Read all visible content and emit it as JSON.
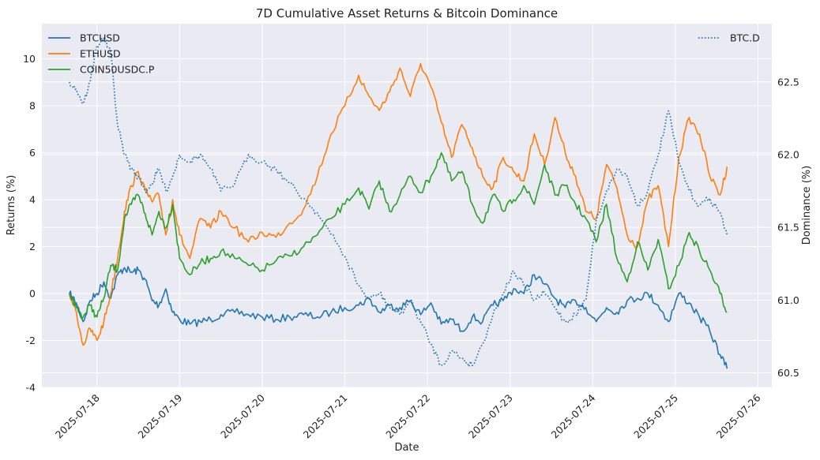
{
  "chart_data": {
    "type": "line",
    "title": "7D Cumulative Asset Returns & Bitcoin Dominance",
    "xlabel": "Date",
    "ylabel": "Returns (%)",
    "y2label": "Dominance (%)",
    "xlim": [
      "2025-07-17T08:00",
      "2025-07-26T04:00"
    ],
    "ylim": [
      -4,
      11.5
    ],
    "y2lim": [
      60.4,
      62.9
    ],
    "x_ticks": [
      "2025-07-18",
      "2025-07-19",
      "2025-07-20",
      "2025-07-21",
      "2025-07-22",
      "2025-07-23",
      "2025-07-24",
      "2025-07-25",
      "2025-07-26"
    ],
    "y_ticks": [
      -4,
      -2,
      0,
      2,
      4,
      6,
      8,
      10
    ],
    "y2_ticks": [
      60.5,
      61.0,
      61.5,
      62.0,
      62.5
    ],
    "grid": true,
    "legend_left": "upper-left",
    "legend_right": "upper-right",
    "series": [
      {
        "name": "BTCUSD",
        "axis": "left",
        "color": "#1f77b4",
        "style": "solid",
        "x": [
          "2025-07-17T16:00",
          "2025-07-17T18:00",
          "2025-07-17T20:00",
          "2025-07-17T22:00",
          "2025-07-18T00:00",
          "2025-07-18T02:00",
          "2025-07-18T04:00",
          "2025-07-18T06:00",
          "2025-07-18T08:00",
          "2025-07-18T10:00",
          "2025-07-18T12:00",
          "2025-07-18T14:00",
          "2025-07-18T16:00",
          "2025-07-18T18:00",
          "2025-07-18T20:00",
          "2025-07-18T22:00",
          "2025-07-19T00:00",
          "2025-07-19T03:00",
          "2025-07-19T06:00",
          "2025-07-19T09:00",
          "2025-07-19T12:00",
          "2025-07-19T16:00",
          "2025-07-19T20:00",
          "2025-07-20T00:00",
          "2025-07-20T04:00",
          "2025-07-20T08:00",
          "2025-07-20T12:00",
          "2025-07-20T16:00",
          "2025-07-20T20:00",
          "2025-07-21T00:00",
          "2025-07-21T04:00",
          "2025-07-21T07:00",
          "2025-07-21T10:00",
          "2025-07-21T13:00",
          "2025-07-21T16:00",
          "2025-07-21T19:00",
          "2025-07-21T22:00",
          "2025-07-22T01:00",
          "2025-07-22T04:00",
          "2025-07-22T07:00",
          "2025-07-22T10:00",
          "2025-07-22T13:00",
          "2025-07-22T16:00",
          "2025-07-22T19:00",
          "2025-07-22T22:00",
          "2025-07-23T01:00",
          "2025-07-23T04:00",
          "2025-07-23T07:00",
          "2025-07-23T10:00",
          "2025-07-23T13:00",
          "2025-07-23T16:00",
          "2025-07-23T19:00",
          "2025-07-23T22:00",
          "2025-07-24T01:00",
          "2025-07-24T04:00",
          "2025-07-24T07:00",
          "2025-07-24T10:00",
          "2025-07-24T13:00",
          "2025-07-24T16:00",
          "2025-07-24T19:00",
          "2025-07-24T22:00",
          "2025-07-25T01:00",
          "2025-07-25T04:00",
          "2025-07-25T07:00",
          "2025-07-25T10:00",
          "2025-07-25T13:00",
          "2025-07-25T15:00"
        ],
        "values": [
          0.0,
          -0.4,
          -1.2,
          -0.3,
          0.0,
          0.5,
          -0.2,
          0.8,
          1.1,
          0.9,
          1.0,
          0.6,
          -0.3,
          -0.5,
          0.2,
          -0.8,
          -1.1,
          -1.3,
          -1.2,
          -1.1,
          -0.9,
          -0.8,
          -0.9,
          -1.0,
          -1.1,
          -1.0,
          -0.9,
          -1.0,
          -0.8,
          -0.6,
          -0.5,
          -0.2,
          -0.8,
          -0.5,
          -0.6,
          -0.3,
          -0.9,
          -0.4,
          -1.3,
          -1.1,
          -1.6,
          -1.0,
          -1.2,
          -0.5,
          -0.3,
          0.2,
          0.0,
          0.8,
          0.4,
          -0.2,
          -0.6,
          -0.3,
          -0.6,
          -1.2,
          -0.6,
          -0.8,
          -0.3,
          -0.2,
          0.0,
          -0.5,
          -1.2,
          0.0,
          -0.4,
          -1.0,
          -1.6,
          -2.6,
          -3.2
        ]
      },
      {
        "name": "ETHUSD",
        "axis": "left",
        "color": "#ff7f0e",
        "style": "solid",
        "x": [
          "2025-07-17T16:00",
          "2025-07-17T18:00",
          "2025-07-17T20:00",
          "2025-07-17T22:00",
          "2025-07-18T00:00",
          "2025-07-18T02:00",
          "2025-07-18T04:00",
          "2025-07-18T06:00",
          "2025-07-18T08:00",
          "2025-07-18T10:00",
          "2025-07-18T12:00",
          "2025-07-18T14:00",
          "2025-07-18T16:00",
          "2025-07-18T18:00",
          "2025-07-18T20:00",
          "2025-07-18T22:00",
          "2025-07-19T00:00",
          "2025-07-19T03:00",
          "2025-07-19T06:00",
          "2025-07-19T09:00",
          "2025-07-19T12:00",
          "2025-07-19T16:00",
          "2025-07-19T20:00",
          "2025-07-20T00:00",
          "2025-07-20T04:00",
          "2025-07-20T08:00",
          "2025-07-20T12:00",
          "2025-07-20T16:00",
          "2025-07-20T20:00",
          "2025-07-21T00:00",
          "2025-07-21T04:00",
          "2025-07-21T07:00",
          "2025-07-21T10:00",
          "2025-07-21T13:00",
          "2025-07-21T16:00",
          "2025-07-21T19:00",
          "2025-07-21T22:00",
          "2025-07-22T01:00",
          "2025-07-22T04:00",
          "2025-07-22T07:00",
          "2025-07-22T10:00",
          "2025-07-22T13:00",
          "2025-07-22T16:00",
          "2025-07-22T19:00",
          "2025-07-22T22:00",
          "2025-07-23T01:00",
          "2025-07-23T04:00",
          "2025-07-23T07:00",
          "2025-07-23T10:00",
          "2025-07-23T13:00",
          "2025-07-23T16:00",
          "2025-07-23T19:00",
          "2025-07-23T22:00",
          "2025-07-24T01:00",
          "2025-07-24T04:00",
          "2025-07-24T07:00",
          "2025-07-24T10:00",
          "2025-07-24T13:00",
          "2025-07-24T16:00",
          "2025-07-24T19:00",
          "2025-07-24T22:00",
          "2025-07-25T01:00",
          "2025-07-25T04:00",
          "2025-07-25T07:00",
          "2025-07-25T10:00",
          "2025-07-25T13:00",
          "2025-07-25T15:00"
        ],
        "values": [
          0.0,
          -0.8,
          -2.2,
          -1.5,
          -2.0,
          -1.2,
          0.0,
          1.5,
          3.5,
          4.6,
          5.2,
          4.4,
          3.9,
          4.2,
          2.5,
          4.0,
          2.5,
          1.5,
          3.2,
          2.8,
          3.5,
          2.8,
          2.2,
          2.6,
          2.4,
          3.0,
          3.6,
          5.0,
          6.8,
          8.0,
          9.3,
          8.4,
          7.8,
          8.6,
          9.6,
          8.4,
          9.8,
          8.8,
          7.3,
          5.8,
          7.2,
          6.2,
          5.0,
          4.5,
          5.8,
          5.2,
          4.8,
          6.8,
          5.5,
          7.5,
          6.0,
          5.0,
          3.5,
          3.2,
          5.5,
          4.5,
          2.5,
          2.0,
          4.0,
          4.6,
          2.0,
          5.8,
          7.5,
          6.8,
          5.0,
          4.2,
          5.4
        ]
      },
      {
        "name": "COIN50USDC.P",
        "axis": "left",
        "color": "#2ca02c",
        "style": "solid",
        "x": [
          "2025-07-17T16:00",
          "2025-07-17T18:00",
          "2025-07-17T20:00",
          "2025-07-17T22:00",
          "2025-07-18T00:00",
          "2025-07-18T02:00",
          "2025-07-18T04:00",
          "2025-07-18T06:00",
          "2025-07-18T08:00",
          "2025-07-18T10:00",
          "2025-07-18T12:00",
          "2025-07-18T14:00",
          "2025-07-18T16:00",
          "2025-07-18T18:00",
          "2025-07-18T20:00",
          "2025-07-18T22:00",
          "2025-07-19T00:00",
          "2025-07-19T03:00",
          "2025-07-19T06:00",
          "2025-07-19T09:00",
          "2025-07-19T12:00",
          "2025-07-19T16:00",
          "2025-07-19T20:00",
          "2025-07-20T00:00",
          "2025-07-20T04:00",
          "2025-07-20T08:00",
          "2025-07-20T12:00",
          "2025-07-20T16:00",
          "2025-07-20T20:00",
          "2025-07-21T00:00",
          "2025-07-21T04:00",
          "2025-07-21T07:00",
          "2025-07-21T10:00",
          "2025-07-21T13:00",
          "2025-07-21T16:00",
          "2025-07-21T19:00",
          "2025-07-21T22:00",
          "2025-07-22T01:00",
          "2025-07-22T04:00",
          "2025-07-22T07:00",
          "2025-07-22T10:00",
          "2025-07-22T13:00",
          "2025-07-22T16:00",
          "2025-07-22T19:00",
          "2025-07-22T22:00",
          "2025-07-23T01:00",
          "2025-07-23T04:00",
          "2025-07-23T07:00",
          "2025-07-23T10:00",
          "2025-07-23T13:00",
          "2025-07-23T16:00",
          "2025-07-23T19:00",
          "2025-07-23T22:00",
          "2025-07-24T01:00",
          "2025-07-24T04:00",
          "2025-07-24T07:00",
          "2025-07-24T10:00",
          "2025-07-24T13:00",
          "2025-07-24T16:00",
          "2025-07-24T19:00",
          "2025-07-24T22:00",
          "2025-07-25T01:00",
          "2025-07-25T04:00",
          "2025-07-25T07:00",
          "2025-07-25T10:00",
          "2025-07-25T13:00",
          "2025-07-25T15:00"
        ],
        "values": [
          0.0,
          -0.6,
          -1.0,
          -0.5,
          -1.0,
          -0.2,
          1.2,
          1.0,
          3.2,
          3.8,
          4.2,
          3.4,
          2.5,
          3.5,
          2.8,
          3.8,
          1.5,
          0.8,
          1.3,
          1.5,
          1.8,
          1.5,
          1.2,
          1.0,
          1.4,
          1.6,
          2.0,
          2.5,
          3.2,
          3.8,
          4.5,
          3.6,
          4.8,
          3.5,
          4.2,
          5.0,
          4.3,
          5.0,
          6.0,
          4.8,
          5.2,
          3.8,
          3.0,
          4.2,
          3.5,
          4.0,
          4.6,
          3.8,
          5.5,
          4.2,
          4.6,
          3.8,
          3.2,
          2.2,
          3.8,
          1.5,
          0.5,
          2.2,
          1.0,
          2.3,
          0.2,
          1.2,
          2.6,
          1.8,
          1.0,
          0.0,
          -0.8
        ]
      },
      {
        "name": "BTC.D",
        "axis": "right",
        "color": "#1f77b4",
        "style": "dotted",
        "x": [
          "2025-07-17T16:00",
          "2025-07-17T18:00",
          "2025-07-17T20:00",
          "2025-07-17T22:00",
          "2025-07-18T00:00",
          "2025-07-18T02:00",
          "2025-07-18T04:00",
          "2025-07-18T06:00",
          "2025-07-18T08:00",
          "2025-07-18T10:00",
          "2025-07-18T12:00",
          "2025-07-18T14:00",
          "2025-07-18T16:00",
          "2025-07-18T18:00",
          "2025-07-18T20:00",
          "2025-07-18T22:00",
          "2025-07-19T00:00",
          "2025-07-19T03:00",
          "2025-07-19T06:00",
          "2025-07-19T09:00",
          "2025-07-19T12:00",
          "2025-07-19T16:00",
          "2025-07-19T20:00",
          "2025-07-20T00:00",
          "2025-07-20T04:00",
          "2025-07-20T08:00",
          "2025-07-20T12:00",
          "2025-07-20T16:00",
          "2025-07-20T20:00",
          "2025-07-21T00:00",
          "2025-07-21T04:00",
          "2025-07-21T07:00",
          "2025-07-21T10:00",
          "2025-07-21T13:00",
          "2025-07-21T16:00",
          "2025-07-21T19:00",
          "2025-07-21T22:00",
          "2025-07-22T01:00",
          "2025-07-22T04:00",
          "2025-07-22T07:00",
          "2025-07-22T10:00",
          "2025-07-22T13:00",
          "2025-07-22T16:00",
          "2025-07-22T19:00",
          "2025-07-22T22:00",
          "2025-07-23T01:00",
          "2025-07-23T04:00",
          "2025-07-23T07:00",
          "2025-07-23T10:00",
          "2025-07-23T13:00",
          "2025-07-23T16:00",
          "2025-07-23T19:00",
          "2025-07-23T22:00",
          "2025-07-24T01:00",
          "2025-07-24T04:00",
          "2025-07-24T07:00",
          "2025-07-24T10:00",
          "2025-07-24T13:00",
          "2025-07-24T16:00",
          "2025-07-24T19:00",
          "2025-07-24T22:00",
          "2025-07-25T01:00",
          "2025-07-25T04:00",
          "2025-07-25T07:00",
          "2025-07-25T10:00",
          "2025-07-25T13:00",
          "2025-07-25T15:00"
        ],
        "values": [
          62.5,
          62.45,
          62.35,
          62.5,
          62.75,
          62.8,
          62.7,
          62.2,
          62.0,
          61.9,
          61.85,
          61.75,
          61.8,
          61.9,
          61.75,
          61.85,
          62.0,
          61.95,
          62.0,
          61.9,
          61.75,
          61.8,
          62.0,
          61.95,
          61.9,
          61.8,
          61.7,
          61.6,
          61.45,
          61.3,
          61.1,
          61.0,
          61.05,
          60.95,
          60.9,
          61.0,
          60.85,
          60.7,
          60.55,
          60.65,
          60.6,
          60.55,
          60.7,
          60.9,
          61.05,
          61.2,
          61.1,
          61.0,
          61.05,
          60.95,
          60.85,
          60.9,
          61.0,
          61.55,
          61.75,
          61.9,
          61.85,
          61.65,
          61.75,
          62.0,
          62.3,
          61.95,
          61.75,
          61.65,
          61.7,
          61.6,
          61.45
        ]
      }
    ]
  }
}
